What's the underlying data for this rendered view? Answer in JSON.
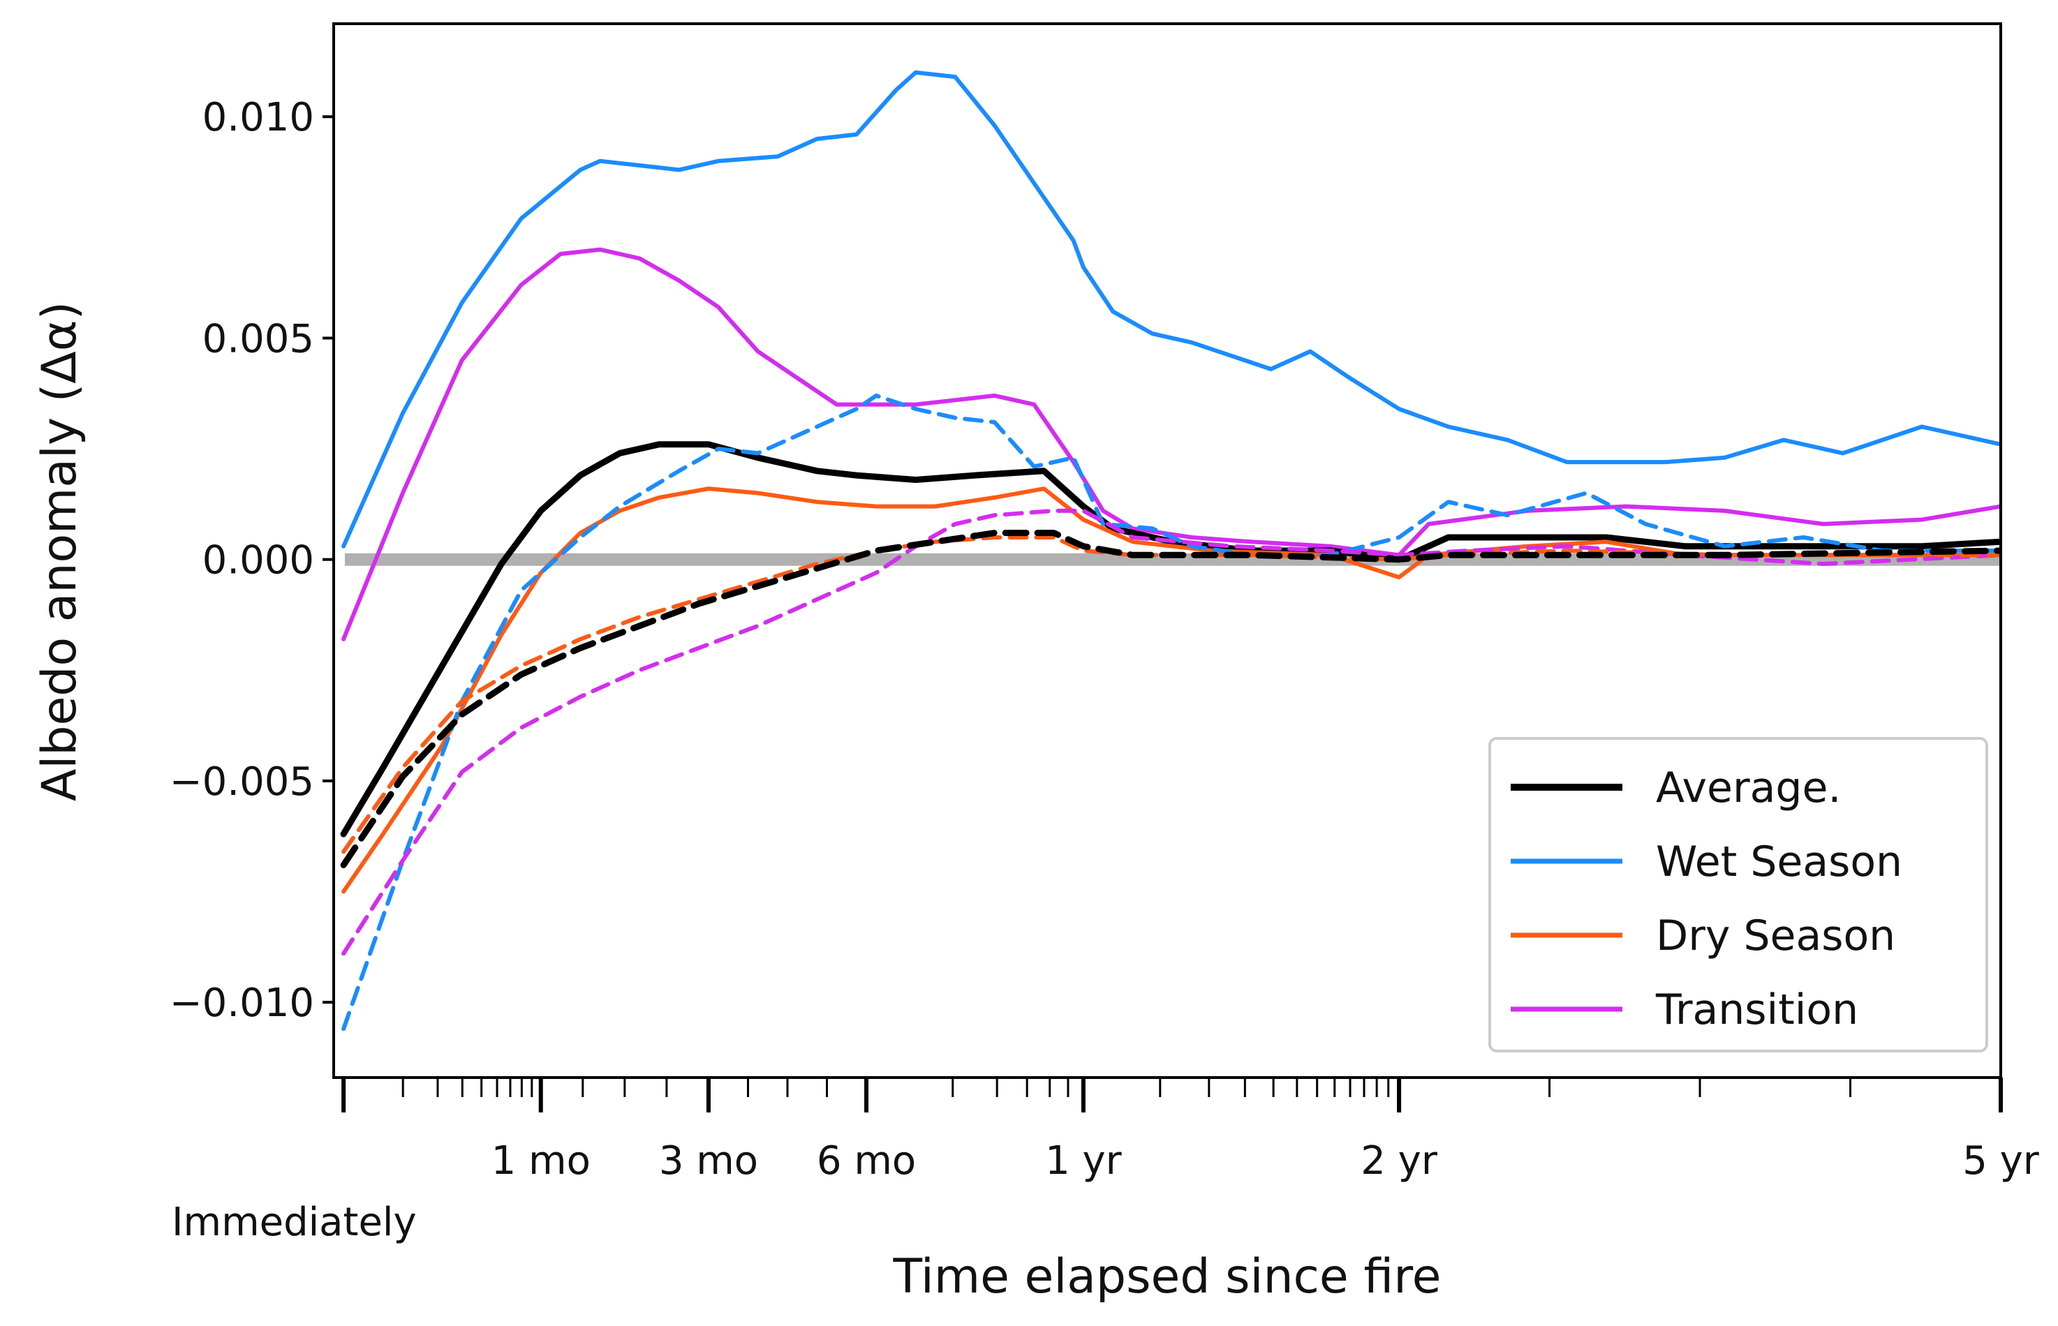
{
  "chart_data": {
    "type": "line",
    "title": "",
    "xlabel": "Time elapsed since fire",
    "ylabel": "Albedo anomaly (Δα)",
    "ylim": [
      -0.0117,
      0.0121
    ],
    "xlim": [
      -0.05,
      8.4
    ],
    "x_ticks": [
      {
        "x": 0,
        "label": "Immediately"
      },
      {
        "x": 1,
        "label": "1 mo"
      },
      {
        "x": 1.85,
        "label": "3 mo"
      },
      {
        "x": 2.65,
        "label": "6 mo"
      },
      {
        "x": 3.75,
        "label": "1 yr"
      },
      {
        "x": 5.35,
        "label": "2 yr"
      },
      {
        "x": 8.4,
        "label": "5 yr"
      }
    ],
    "y_ticks": [
      {
        "y": 0.01,
        "label": "0.010"
      },
      {
        "y": 0.005,
        "label": "0.005"
      },
      {
        "y": 0.0,
        "label": "0.000"
      },
      {
        "y": -0.005,
        "label": "−0.005"
      },
      {
        "y": -0.01,
        "label": "−0.010"
      }
    ],
    "zero_line": {
      "y": 0,
      "color": "#b0b0b0"
    },
    "legend": {
      "position": "lower-right",
      "entries": [
        {
          "name": "Average.",
          "color": "#000000"
        },
        {
          "name": "Wet Season",
          "color": "#1a8cff"
        },
        {
          "name": "Dry Season",
          "color": "#ff5a14"
        },
        {
          "name": "Transition",
          "color": "#d42cf0"
        }
      ]
    },
    "series": [
      {
        "name": "Wet Season",
        "style": "solid",
        "color": "#1a8cff",
        "points": [
          [
            0,
            0.0003
          ],
          [
            0.3,
            0.0033
          ],
          [
            0.6,
            0.0058
          ],
          [
            0.9,
            0.0077
          ],
          [
            1.2,
            0.0088
          ],
          [
            1.3,
            0.009
          ],
          [
            1.5,
            0.0089
          ],
          [
            1.7,
            0.0088
          ],
          [
            1.9,
            0.009
          ],
          [
            2.2,
            0.0091
          ],
          [
            2.4,
            0.0095
          ],
          [
            2.6,
            0.0096
          ],
          [
            2.8,
            0.0106
          ],
          [
            2.9,
            0.011
          ],
          [
            3.1,
            0.0109
          ],
          [
            3.3,
            0.0098
          ],
          [
            3.5,
            0.0085
          ],
          [
            3.7,
            0.0072
          ],
          [
            3.75,
            0.0066
          ],
          [
            3.9,
            0.0056
          ],
          [
            4.1,
            0.0051
          ],
          [
            4.3,
            0.0049
          ],
          [
            4.5,
            0.0046
          ],
          [
            4.7,
            0.0043
          ],
          [
            4.9,
            0.0047
          ],
          [
            5.1,
            0.0041
          ],
          [
            5.35,
            0.0034
          ],
          [
            5.6,
            0.003
          ],
          [
            5.9,
            0.0027
          ],
          [
            6.2,
            0.0022
          ],
          [
            6.4,
            0.0022
          ],
          [
            6.7,
            0.0022
          ],
          [
            7.0,
            0.0023
          ],
          [
            7.3,
            0.0027
          ],
          [
            7.6,
            0.0024
          ],
          [
            8.0,
            0.003
          ],
          [
            8.4,
            0.0026
          ]
        ]
      },
      {
        "name": "Transition",
        "style": "solid",
        "color": "#d42cf0",
        "points": [
          [
            0,
            -0.0018
          ],
          [
            0.3,
            0.0015
          ],
          [
            0.6,
            0.0045
          ],
          [
            0.9,
            0.0062
          ],
          [
            1.1,
            0.0069
          ],
          [
            1.3,
            0.007
          ],
          [
            1.5,
            0.0068
          ],
          [
            1.7,
            0.0063
          ],
          [
            1.9,
            0.0057
          ],
          [
            2.1,
            0.0047
          ],
          [
            2.3,
            0.0041
          ],
          [
            2.5,
            0.0035
          ],
          [
            2.7,
            0.0035
          ],
          [
            2.9,
            0.0035
          ],
          [
            3.1,
            0.0036
          ],
          [
            3.3,
            0.0037
          ],
          [
            3.5,
            0.0035
          ],
          [
            3.7,
            0.0022
          ],
          [
            3.85,
            0.0011
          ],
          [
            4.0,
            0.0007
          ],
          [
            4.3,
            0.0005
          ],
          [
            4.6,
            0.0004
          ],
          [
            5.0,
            0.0003
          ],
          [
            5.35,
            0.0001
          ],
          [
            5.5,
            0.0008
          ],
          [
            6.0,
            0.0011
          ],
          [
            6.5,
            0.0012
          ],
          [
            7.0,
            0.0011
          ],
          [
            7.5,
            0.0008
          ],
          [
            8.0,
            0.0009
          ],
          [
            8.4,
            0.0012
          ]
        ]
      },
      {
        "name": "Average.",
        "style": "solid",
        "color": "#000000",
        "points": [
          [
            0,
            -0.0062
          ],
          [
            0.2,
            -0.0047
          ],
          [
            0.5,
            -0.0024
          ],
          [
            0.8,
            -0.0001
          ],
          [
            1.0,
            0.0011
          ],
          [
            1.2,
            0.0019
          ],
          [
            1.4,
            0.0024
          ],
          [
            1.6,
            0.0026
          ],
          [
            1.85,
            0.0026
          ],
          [
            2.1,
            0.0023
          ],
          [
            2.4,
            0.002
          ],
          [
            2.6,
            0.0019
          ],
          [
            2.9,
            0.0018
          ],
          [
            3.2,
            0.0019
          ],
          [
            3.55,
            0.002
          ],
          [
            3.75,
            0.0012
          ],
          [
            3.9,
            0.0007
          ],
          [
            4.2,
            0.0004
          ],
          [
            4.6,
            0.0002
          ],
          [
            5.0,
            0.0002
          ],
          [
            5.35,
            0.0
          ],
          [
            5.6,
            0.0005
          ],
          [
            6.0,
            0.0005
          ],
          [
            6.4,
            0.0005
          ],
          [
            6.8,
            0.0003
          ],
          [
            7.2,
            0.0003
          ],
          [
            7.6,
            0.0003
          ],
          [
            8.0,
            0.0003
          ],
          [
            8.4,
            0.0004
          ]
        ]
      },
      {
        "name": "Dry Season",
        "style": "solid",
        "color": "#ff5a14",
        "points": [
          [
            0,
            -0.0075
          ],
          [
            0.2,
            -0.0062
          ],
          [
            0.5,
            -0.0042
          ],
          [
            0.8,
            -0.0017
          ],
          [
            1.0,
            -0.0003
          ],
          [
            1.2,
            0.0006
          ],
          [
            1.4,
            0.0011
          ],
          [
            1.6,
            0.0014
          ],
          [
            1.85,
            0.0016
          ],
          [
            2.1,
            0.0015
          ],
          [
            2.4,
            0.0013
          ],
          [
            2.7,
            0.0012
          ],
          [
            3.0,
            0.0012
          ],
          [
            3.3,
            0.0014
          ],
          [
            3.55,
            0.0016
          ],
          [
            3.75,
            0.0009
          ],
          [
            4.0,
            0.0004
          ],
          [
            4.4,
            0.0002
          ],
          [
            5.0,
            0.0001
          ],
          [
            5.35,
            -0.0004
          ],
          [
            5.5,
            0.0001
          ],
          [
            6.0,
            0.0003
          ],
          [
            6.4,
            0.0004
          ],
          [
            6.8,
            0.0001
          ],
          [
            7.5,
            0.0001
          ],
          [
            8.4,
            0.0001
          ]
        ]
      },
      {
        "name": "Wet Season",
        "style": "dashed",
        "color": "#1a8cff",
        "points": [
          [
            0,
            -0.0106
          ],
          [
            0.3,
            -0.0068
          ],
          [
            0.6,
            -0.0032
          ],
          [
            0.9,
            -0.0007
          ],
          [
            1.2,
            0.0005
          ],
          [
            1.4,
            0.0012
          ],
          [
            1.7,
            0.002
          ],
          [
            1.9,
            0.0025
          ],
          [
            2.1,
            0.0024
          ],
          [
            2.3,
            0.0028
          ],
          [
            2.6,
            0.0034
          ],
          [
            2.7,
            0.0037
          ],
          [
            2.9,
            0.0034
          ],
          [
            3.1,
            0.0032
          ],
          [
            3.3,
            0.0031
          ],
          [
            3.5,
            0.0021
          ],
          [
            3.7,
            0.0023
          ],
          [
            3.85,
            0.0008
          ],
          [
            4.1,
            0.0007
          ],
          [
            4.3,
            0.0003
          ],
          [
            4.6,
            0.0001
          ],
          [
            5.0,
            0.0001
          ],
          [
            5.35,
            0.0005
          ],
          [
            5.6,
            0.0013
          ],
          [
            5.9,
            0.001
          ],
          [
            6.3,
            0.0015
          ],
          [
            6.6,
            0.0008
          ],
          [
            7.0,
            0.0003
          ],
          [
            7.4,
            0.0005
          ],
          [
            7.8,
            0.0002
          ],
          [
            8.4,
            0.0002
          ]
        ]
      },
      {
        "name": "Transition",
        "style": "dashed",
        "color": "#d42cf0",
        "points": [
          [
            0,
            -0.0089
          ],
          [
            0.3,
            -0.0068
          ],
          [
            0.6,
            -0.0048
          ],
          [
            0.9,
            -0.0038
          ],
          [
            1.2,
            -0.0031
          ],
          [
            1.5,
            -0.0025
          ],
          [
            1.8,
            -0.002
          ],
          [
            2.1,
            -0.0015
          ],
          [
            2.4,
            -0.0009
          ],
          [
            2.7,
            -0.0003
          ],
          [
            2.9,
            0.0003
          ],
          [
            3.1,
            0.0008
          ],
          [
            3.3,
            0.001
          ],
          [
            3.6,
            0.0011
          ],
          [
            3.75,
            0.0011
          ],
          [
            4.0,
            0.0005
          ],
          [
            4.5,
            0.0003
          ],
          [
            5.0,
            0.0002
          ],
          [
            5.35,
            0.0001
          ],
          [
            5.7,
            0.0002
          ],
          [
            6.2,
            0.0003
          ],
          [
            6.8,
            0.0001
          ],
          [
            7.5,
            -0.0001
          ],
          [
            8.4,
            0.0001
          ]
        ]
      },
      {
        "name": "Dry Season",
        "style": "dashed",
        "color": "#ff5a14",
        "points": [
          [
            0,
            -0.0066
          ],
          [
            0.3,
            -0.0047
          ],
          [
            0.6,
            -0.0032
          ],
          [
            0.9,
            -0.0024
          ],
          [
            1.2,
            -0.0018
          ],
          [
            1.5,
            -0.0013
          ],
          [
            1.8,
            -0.0009
          ],
          [
            2.1,
            -0.0005
          ],
          [
            2.4,
            -0.0001
          ],
          [
            2.7,
            0.0002
          ],
          [
            3.0,
            0.0004
          ],
          [
            3.3,
            0.0005
          ],
          [
            3.6,
            0.0005
          ],
          [
            3.75,
            0.0002
          ],
          [
            4.0,
            0.0001
          ],
          [
            4.6,
            0.0001
          ],
          [
            5.35,
            0.0
          ],
          [
            5.6,
            0.0001
          ],
          [
            6.2,
            0.0002
          ],
          [
            7.0,
            0.0001
          ],
          [
            8.4,
            0.0001
          ]
        ]
      },
      {
        "name": "Average.",
        "style": "dashed",
        "color": "#000000",
        "points": [
          [
            0,
            -0.0069
          ],
          [
            0.3,
            -0.0049
          ],
          [
            0.6,
            -0.0035
          ],
          [
            0.9,
            -0.0026
          ],
          [
            1.2,
            -0.002
          ],
          [
            1.5,
            -0.0015
          ],
          [
            1.8,
            -0.001
          ],
          [
            2.1,
            -0.0006
          ],
          [
            2.4,
            -0.0002
          ],
          [
            2.7,
            0.0002
          ],
          [
            3.0,
            0.0004
          ],
          [
            3.3,
            0.0006
          ],
          [
            3.6,
            0.0006
          ],
          [
            3.75,
            0.0003
          ],
          [
            4.0,
            0.0001
          ],
          [
            4.6,
            0.0001
          ],
          [
            5.35,
            0.0
          ],
          [
            5.6,
            0.0001
          ],
          [
            6.2,
            0.0001
          ],
          [
            7.0,
            0.0001
          ],
          [
            8.4,
            0.0002
          ]
        ]
      }
    ]
  }
}
